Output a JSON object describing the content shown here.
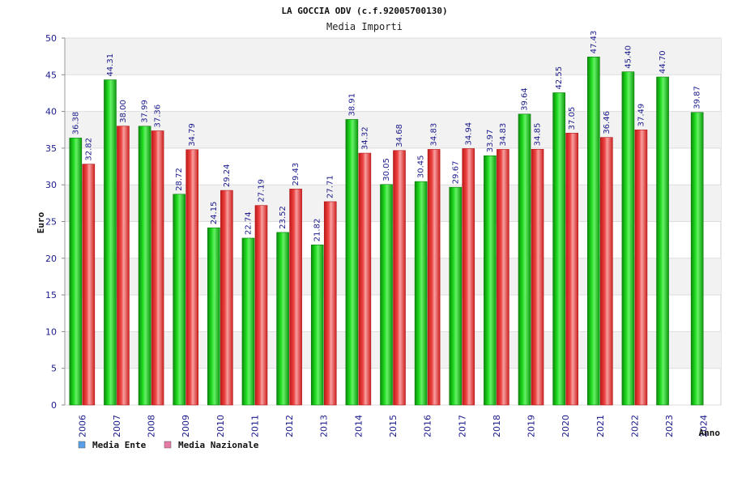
{
  "chart_data": {
    "type": "bar",
    "title": "LA GOCCIA ODV (c.f.92005700130)",
    "subtitle": "Media Importi",
    "xlabel": "Anno",
    "ylabel": "Euro",
    "ylim": [
      0,
      50
    ],
    "yticks": [
      0,
      5,
      10,
      15,
      20,
      25,
      30,
      35,
      40,
      45,
      50
    ],
    "grid": true,
    "legend_position": "bottom-left",
    "categories": [
      "2006",
      "2007",
      "2008",
      "2009",
      "2010",
      "2011",
      "2012",
      "2013",
      "2014",
      "2015",
      "2016",
      "2017",
      "2018",
      "2019",
      "2020",
      "2021",
      "2022",
      "2023",
      "2024"
    ],
    "series": [
      {
        "name": "Media Ente",
        "color": "#11bb11",
        "legend_color": "#5aa0e8",
        "values": [
          36.38,
          44.31,
          37.99,
          28.72,
          24.15,
          22.74,
          23.52,
          21.82,
          38.91,
          30.05,
          30.45,
          29.67,
          33.97,
          39.64,
          42.55,
          47.43,
          45.4,
          44.7,
          39.87
        ],
        "labels": [
          "36.38",
          "44.31",
          "37.99",
          "28.72",
          "24.15",
          "22.74",
          "23.52",
          "21.82",
          "38.91",
          "30.05",
          "30.45",
          "29.67",
          "33.97",
          "39.64",
          "42.55",
          "47.43",
          "45.40",
          "44.70",
          "39.87"
        ]
      },
      {
        "name": "Media Nazionale",
        "color": "#ee2222",
        "legend_color": "#e87aa8",
        "values": [
          32.82,
          38.0,
          37.36,
          34.79,
          29.24,
          27.19,
          29.43,
          27.71,
          34.32,
          34.68,
          34.83,
          34.94,
          34.83,
          34.85,
          37.05,
          36.46,
          37.49,
          null,
          null
        ],
        "labels": [
          "32.82",
          "38.00",
          "37.36",
          "34.79",
          "29.24",
          "27.19",
          "29.43",
          "27.71",
          "34.32",
          "34.68",
          "34.83",
          "34.94",
          "34.83",
          "34.85",
          "37.05",
          "36.46",
          "37.49",
          "",
          ""
        ]
      }
    ]
  }
}
